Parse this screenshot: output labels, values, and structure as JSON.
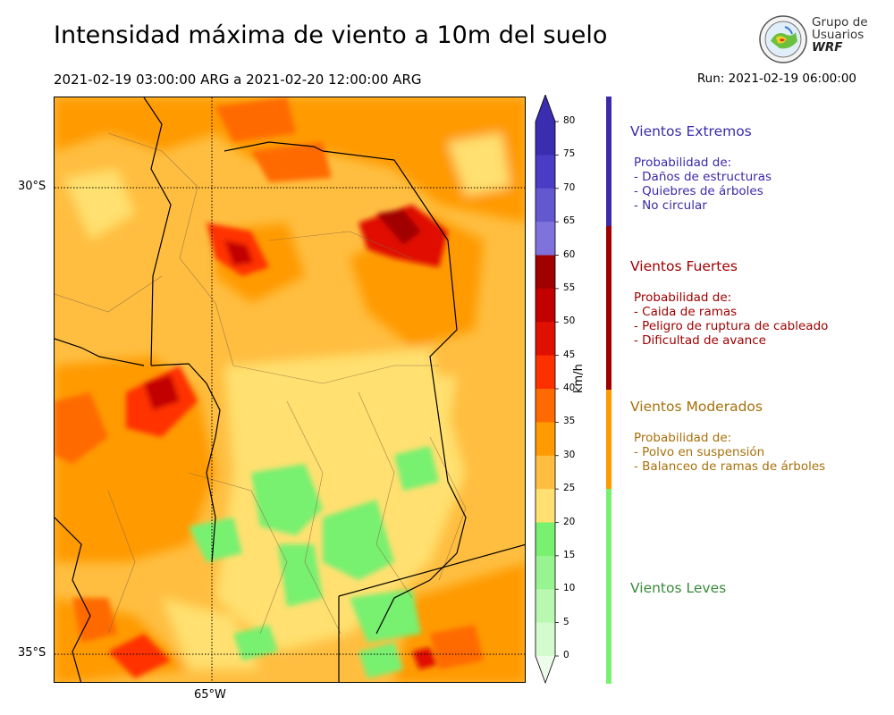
{
  "header": {
    "title": "Intensidad máxima de viento a 10m del suelo",
    "period": "2021-02-19 03:00:00 ARG  a  2021-02-20 12:00:00 ARG",
    "run": "Run: 2021-02-19 06:00:00"
  },
  "logo": {
    "line1": "Grupo de",
    "line2": "Usuarios",
    "line3": "WRF"
  },
  "map": {
    "lat_labels": [
      "30°S",
      "35°S"
    ],
    "lon_labels": [
      "65°W"
    ]
  },
  "colorbar": {
    "unit": "km/h",
    "ticks": [
      "80",
      "75",
      "70",
      "65",
      "60",
      "55",
      "50",
      "45",
      "40",
      "35",
      "30",
      "25",
      "20",
      "15",
      "10",
      "5",
      "0"
    ],
    "colors": [
      "#3b2db0",
      "#4a3cc4",
      "#6458d0",
      "#7f72dc",
      "#a00000",
      "#c20000",
      "#e01000",
      "#ff3000",
      "#ff6a00",
      "#ff9a00",
      "#ffbe40",
      "#ffe070",
      "#78f070",
      "#98f490",
      "#b8f8b0",
      "#d4fbd0",
      "#ecfdea"
    ]
  },
  "categories": [
    {
      "title": "Vientos Extremos",
      "color": "#3b2ba8",
      "sub_header": "Probabilidad de:",
      "items": [
        "- Daños de estructuras",
        "- Quiebres de árboles",
        "- No circular"
      ]
    },
    {
      "title": "Vientos Fuertes",
      "color": "#a00000",
      "sub_header": "Probabilidad de:",
      "items": [
        "- Caida de ramas",
        "- Peligro de ruptura de cableado",
        "- Dificultad de avance"
      ]
    },
    {
      "title": "Vientos Moderados",
      "color": "#a8700a",
      "sub_header": "Probabilidad de:",
      "items": [
        "- Polvo en suspensión",
        "- Balanceo de ramas de árboles"
      ]
    },
    {
      "title": "Vientos Leves",
      "color": "#3a8a3a",
      "sub_header": "",
      "items": []
    }
  ],
  "category_bar_colors": [
    "#3b2ba8",
    "#a00000",
    "#ff9a00",
    "#78f070"
  ]
}
